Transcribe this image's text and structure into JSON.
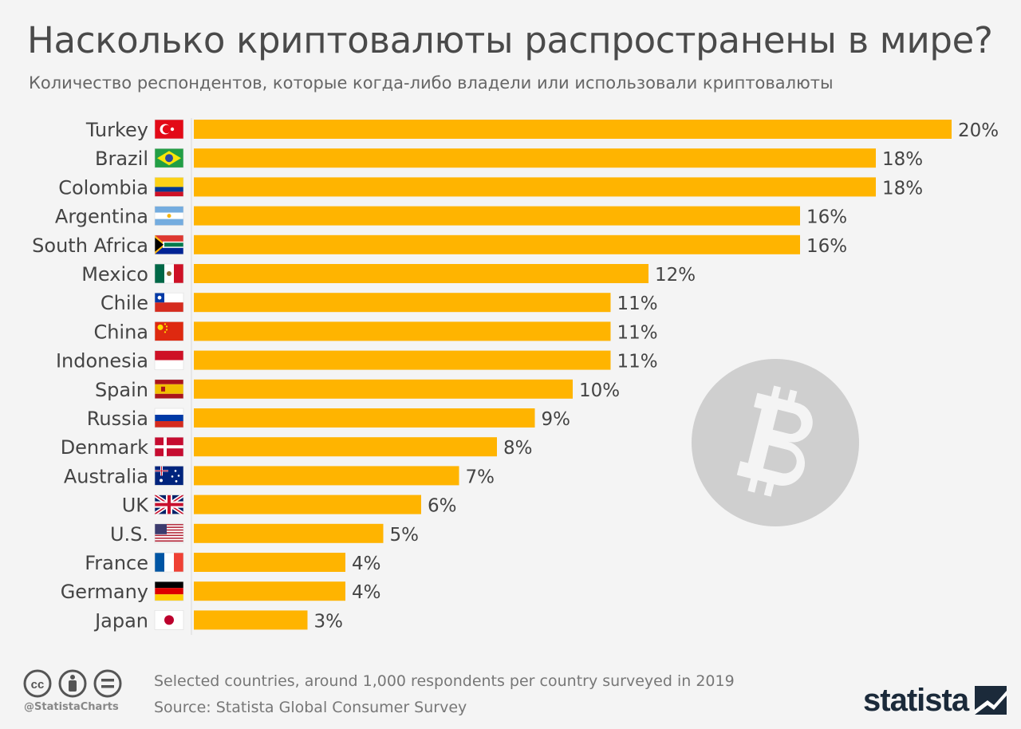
{
  "title": "Насколько криптовалюты распространены в мире?",
  "subtitle": "Количество респондентов, которые когда-либо владели или использовали криптовалюты",
  "chart_data": {
    "type": "bar",
    "orientation": "horizontal",
    "categories": [
      "Turkey",
      "Brazil",
      "Colombia",
      "Argentina",
      "South Africa",
      "Mexico",
      "Chile",
      "China",
      "Indonesia",
      "Spain",
      "Russia",
      "Denmark",
      "Australia",
      "UK",
      "U.S.",
      "France",
      "Germany",
      "Japan"
    ],
    "values": [
      20,
      18,
      18,
      16,
      16,
      12,
      11,
      11,
      11,
      10,
      9,
      8,
      7,
      6,
      5,
      4,
      4,
      3
    ],
    "value_labels": [
      "20%",
      "18%",
      "18%",
      "16%",
      "16%",
      "12%",
      "11%",
      "11%",
      "11%",
      "10%",
      "9%",
      "8%",
      "7%",
      "6%",
      "5%",
      "4%",
      "4%",
      "3%"
    ],
    "xlim": [
      0,
      20
    ],
    "bar_color": "#ffb400",
    "grid": false
  },
  "flags": [
    "turkey-flag-icon",
    "brazil-flag-icon",
    "colombia-flag-icon",
    "argentina-flag-icon",
    "south-africa-flag-icon",
    "mexico-flag-icon",
    "chile-flag-icon",
    "china-flag-icon",
    "indonesia-flag-icon",
    "spain-flag-icon",
    "russia-flag-icon",
    "denmark-flag-icon",
    "australia-flag-icon",
    "uk-flag-icon",
    "us-flag-icon",
    "france-flag-icon",
    "germany-flag-icon",
    "japan-flag-icon"
  ],
  "watermark_icon": "bitcoin-icon",
  "footer": {
    "note": "Selected countries, around 1,000 respondents per country surveyed in 2019",
    "source": "Source: Statista Global Consumer Survey",
    "handle": "@StatistaCharts",
    "license_icons": [
      "cc-icon",
      "attribution-icon",
      "no-derivatives-icon"
    ],
    "brand": "statista"
  }
}
